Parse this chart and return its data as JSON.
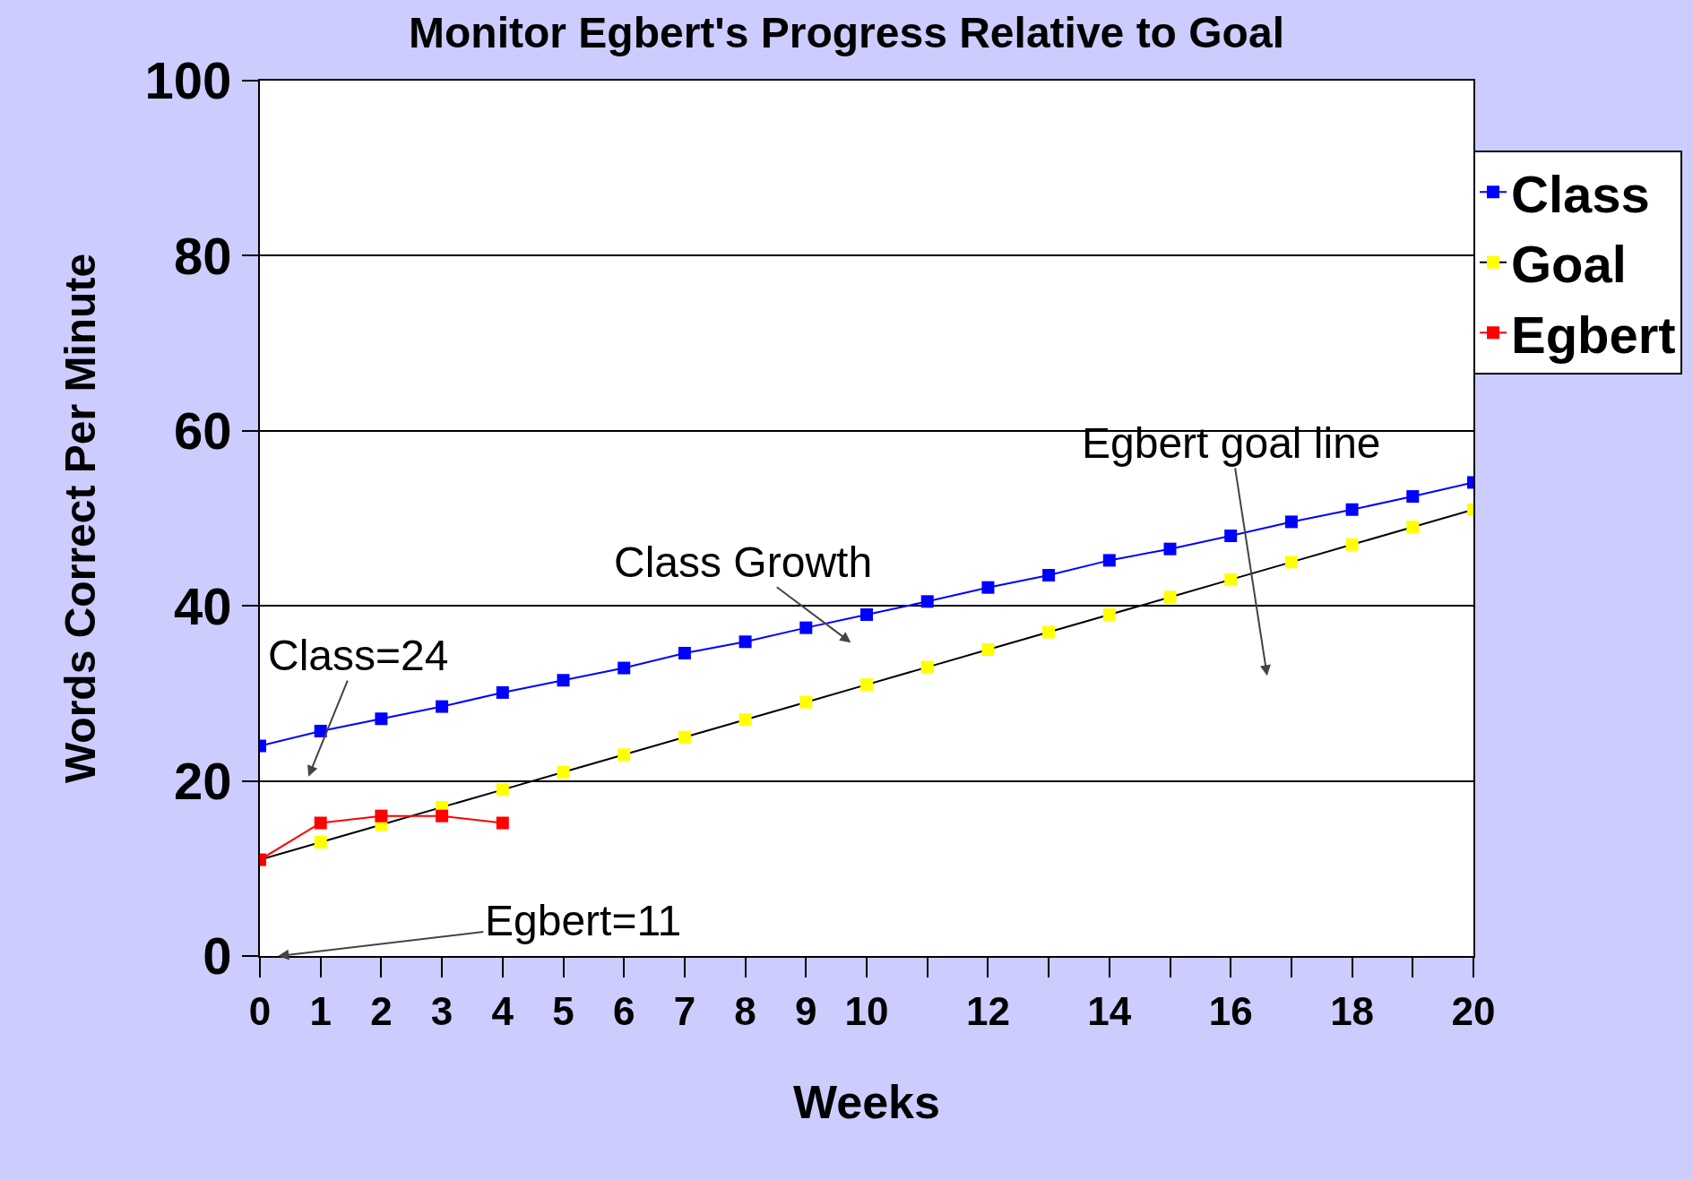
{
  "chart_data": {
    "type": "line",
    "title": "Monitor Egbert's Progress Relative to Goal",
    "xlabel": "Weeks",
    "ylabel": "Words Correct Per Minute",
    "x": [
      0,
      1,
      2,
      3,
      4,
      5,
      6,
      7,
      8,
      9,
      10,
      11,
      12,
      13,
      14,
      15,
      16,
      17,
      18,
      19,
      20
    ],
    "series": [
      {
        "name": "Class",
        "color": "#0000ff",
        "values": [
          24,
          25.7,
          27.1,
          28.5,
          30.1,
          31.5,
          32.9,
          34.6,
          35.9,
          37.5,
          39,
          40.5,
          42.1,
          43.5,
          45.2,
          46.5,
          48,
          49.6,
          51,
          52.5,
          54.1
        ]
      },
      {
        "name": "Goal",
        "color": "#000000",
        "colors": [
          "#ffff00",
          "#ffff00",
          "#ffff00",
          "#ffff00",
          "#ffff00",
          "#ffff00",
          "#ffff00",
          "#ffff00",
          "#ffff00",
          "#ffff00",
          "#ffff00",
          "#ffff00",
          "#ffff00",
          "#ffff00",
          "#ffff00",
          "#ffff00",
          "#ffff00",
          "#ffff00",
          "#ffff00",
          "#ffff00",
          "#ffff00"
        ],
        "values": [
          11,
          13,
          15,
          17,
          19,
          21,
          23,
          25,
          27,
          29,
          31,
          33,
          35,
          37,
          39,
          41,
          43,
          45,
          47,
          49,
          51
        ]
      },
      {
        "name": "Egbert",
        "color": "#ff0000",
        "x": [
          0,
          1,
          2,
          3,
          4
        ],
        "values": [
          11,
          15.2,
          16,
          16,
          15.2
        ]
      }
    ],
    "xlim": [
      0,
      20
    ],
    "ylim": [
      0,
      100
    ],
    "xticks": [
      0,
      1,
      2,
      3,
      4,
      5,
      6,
      7,
      8,
      9,
      10,
      12,
      14,
      16,
      18,
      20
    ],
    "yticks": [
      0,
      20,
      40,
      60,
      80,
      100
    ],
    "grid": "y",
    "legend": "top right",
    "marker": "square",
    "line_style": "solid",
    "annotations": [
      "Class Growth",
      "Class=24",
      "Egbert=11",
      "Egbert goal line"
    ]
  }
}
